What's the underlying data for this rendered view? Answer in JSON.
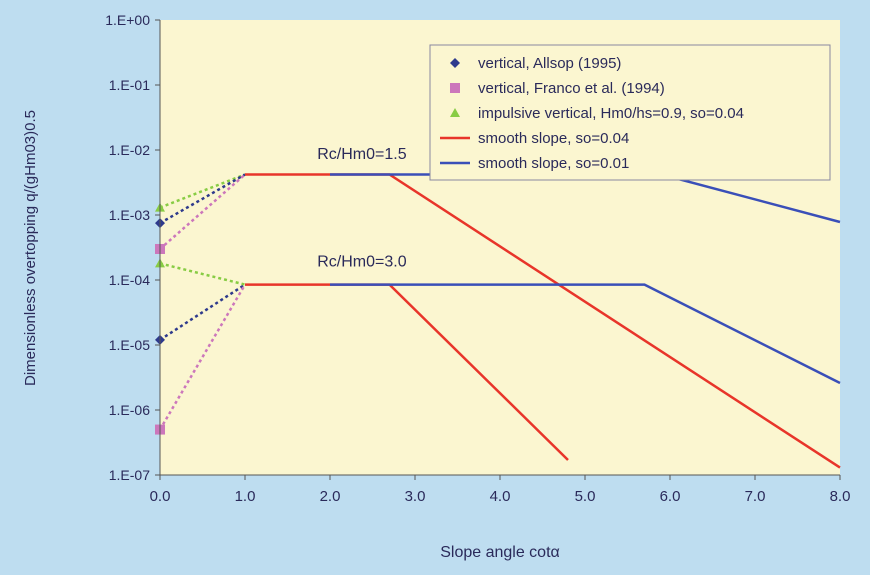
{
  "chart_data": {
    "type": "scatter",
    "title": "",
    "xlabel": "Slope angle cotα",
    "ylabel": "Dimensionless overtopping q/(gHm03)0.5",
    "xlim": [
      0,
      8
    ],
    "ylim_log10": [
      -7,
      0
    ],
    "yscale": "log",
    "grid": false,
    "legend_position": "top-right",
    "x_ticks": [
      "0.0",
      "1.0",
      "2.0",
      "3.0",
      "4.0",
      "5.0",
      "6.0",
      "7.0",
      "8.0"
    ],
    "y_ticks": [
      "1.E+00",
      "1.E-01",
      "1.E-02",
      "1.E-03",
      "1.E-04",
      "1.E-05",
      "1.E-06",
      "1.E-07"
    ],
    "annotations": [
      {
        "text": "Rc/Hm0=1.5",
        "x": 1.85,
        "y": 0.0073
      },
      {
        "text": "Rc/Hm0=3.0",
        "x": 1.85,
        "y": 0.00016
      }
    ],
    "series": [
      {
        "name": "vertical, Allsop (1995)",
        "kind": "marker",
        "marker": "diamond",
        "color": "#2E3A8C",
        "points": [
          [
            0,
            0.00075
          ],
          [
            0,
            1.2e-05
          ]
        ]
      },
      {
        "name": "vertical, Franco et al. (1994)",
        "kind": "marker",
        "marker": "square",
        "color": "#CC77BB",
        "points": [
          [
            0,
            0.0003
          ],
          [
            0,
            5e-07
          ]
        ]
      },
      {
        "name": "impulsive vertical, Hm0/hs=0.9, so=0.04",
        "kind": "marker",
        "marker": "triangle",
        "color": "#88CC44",
        "points": [
          [
            0,
            0.0013
          ],
          [
            0,
            0.00018
          ]
        ]
      },
      {
        "name": "smooth slope, so=0.04",
        "kind": "line",
        "color": "#E8352A",
        "segments": [
          [
            [
              1,
              0.0042
            ],
            [
              2.7,
              0.0042
            ],
            [
              8,
              1.3e-07
            ]
          ],
          [
            [
              1,
              8.5e-05
            ],
            [
              2.7,
              8.5e-05
            ],
            [
              4.8,
              1.7e-07
            ]
          ]
        ]
      },
      {
        "name": "smooth slope, so=0.01",
        "kind": "line",
        "color": "#3A4FB8",
        "segments": [
          [
            [
              2,
              0.0042
            ],
            [
              5.9,
              0.0042
            ],
            [
              8,
              0.00078
            ]
          ],
          [
            [
              2,
              8.5e-05
            ],
            [
              5.7,
              8.5e-05
            ],
            [
              8,
              2.6e-06
            ]
          ]
        ]
      }
    ],
    "dashed_connectors": [
      {
        "color": "#88CC44",
        "points": [
          [
            0,
            0.0013
          ],
          [
            1,
            0.0042
          ]
        ]
      },
      {
        "color": "#2E3A8C",
        "points": [
          [
            0,
            0.00075
          ],
          [
            1,
            0.0042
          ]
        ]
      },
      {
        "color": "#CC77BB",
        "points": [
          [
            0,
            0.0003
          ],
          [
            1,
            0.0042
          ]
        ]
      },
      {
        "color": "#88CC44",
        "points": [
          [
            0,
            0.00018
          ],
          [
            1,
            8.5e-05
          ]
        ]
      },
      {
        "color": "#2E3A8C",
        "points": [
          [
            0,
            1.2e-05
          ],
          [
            1,
            8.5e-05
          ]
        ]
      },
      {
        "color": "#CC77BB",
        "points": [
          [
            0,
            5e-07
          ],
          [
            1,
            8.5e-05
          ]
        ]
      }
    ],
    "colors": {
      "outer_background": "#BEDDF0",
      "plot_background": "#FBF6D0"
    }
  }
}
